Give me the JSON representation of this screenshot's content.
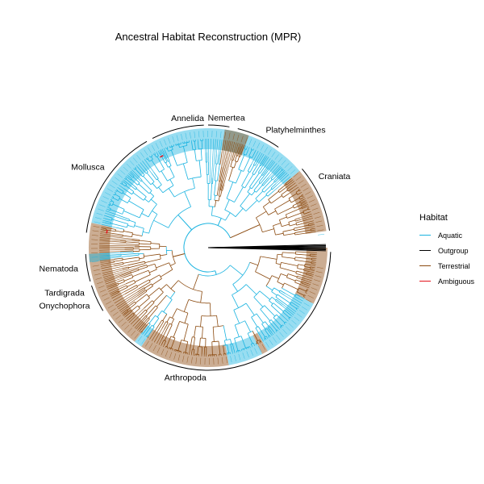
{
  "title": "Ancestral Habitat Reconstruction (MPR)",
  "colors": {
    "aquatic": "#1ab3e0",
    "outgroup": "#000000",
    "terrestrial": "#8b4a0f",
    "ambiguous": "#e3141c"
  },
  "legend": {
    "title": "Habitat",
    "items": [
      {
        "label": "Aquatic",
        "color": "#1ab3e0"
      },
      {
        "label": "Outgroup",
        "color": "#000000"
      },
      {
        "label": "Terrestrial",
        "color": "#8b4a0f"
      },
      {
        "label": "Ambiguous",
        "color": "#e3141c"
      }
    ]
  },
  "clades": [
    {
      "name": "Craniata",
      "from_deg": 8,
      "to_deg": 40,
      "label_deg": 33
    },
    {
      "name": "Platyhelminthes",
      "from_deg": 55,
      "to_deg": 76,
      "label_deg": 64
    },
    {
      "name": "Nemertea",
      "from_deg": 80,
      "to_deg": 90,
      "label_deg": 82
    },
    {
      "name": "Annelida",
      "from_deg": 92,
      "to_deg": 117,
      "label_deg": 99
    },
    {
      "name": "Mollusca",
      "from_deg": 120,
      "to_deg": 173,
      "label_deg": 142
    },
    {
      "name": "Nematoda",
      "from_deg": 183,
      "to_deg": 196,
      "label_deg": 189
    },
    {
      "name": "Tardigrada",
      "from_deg": 198,
      "to_deg": 203,
      "label_deg": 200
    },
    {
      "name": "Onychophora",
      "from_deg": 203,
      "to_deg": 211,
      "label_deg": 206
    },
    {
      "name": "Arthropoda",
      "from_deg": 216,
      "to_deg": 358,
      "label_deg": 260
    }
  ],
  "tip_bands": [
    {
      "habitat": "aquatic",
      "from_deg": 40,
      "to_deg": 105
    },
    {
      "habitat": "terrestrial",
      "from_deg": 70,
      "to_deg": 82
    },
    {
      "habitat": "aquatic",
      "from_deg": 105,
      "to_deg": 168
    },
    {
      "habitat": "terrestrial",
      "from_deg": 168,
      "to_deg": 190
    },
    {
      "habitat": "aquatic",
      "from_deg": 183,
      "to_deg": 187
    },
    {
      "habitat": "terrestrial",
      "from_deg": 190,
      "to_deg": 232
    },
    {
      "habitat": "aquatic",
      "from_deg": 232,
      "to_deg": 236
    },
    {
      "habitat": "terrestrial",
      "from_deg": 236,
      "to_deg": 280
    },
    {
      "habitat": "aquatic",
      "from_deg": 280,
      "to_deg": 297
    },
    {
      "habitat": "terrestrial",
      "from_deg": 297,
      "to_deg": 300
    },
    {
      "habitat": "aquatic",
      "from_deg": 300,
      "to_deg": 332
    },
    {
      "habitat": "terrestrial",
      "from_deg": 332,
      "to_deg": 360
    },
    {
      "habitat": "terrestrial",
      "from_deg": 8,
      "to_deg": 40
    },
    {
      "habitat": "ambiguous",
      "from_deg": 116,
      "to_deg": 118
    },
    {
      "habitat": "ambiguous",
      "from_deg": 170,
      "to_deg": 172
    }
  ],
  "outgroup_tips_deg": [
    1.5,
    1,
    0.5,
    0,
    -0.5,
    -1,
    -1.5
  ]
}
